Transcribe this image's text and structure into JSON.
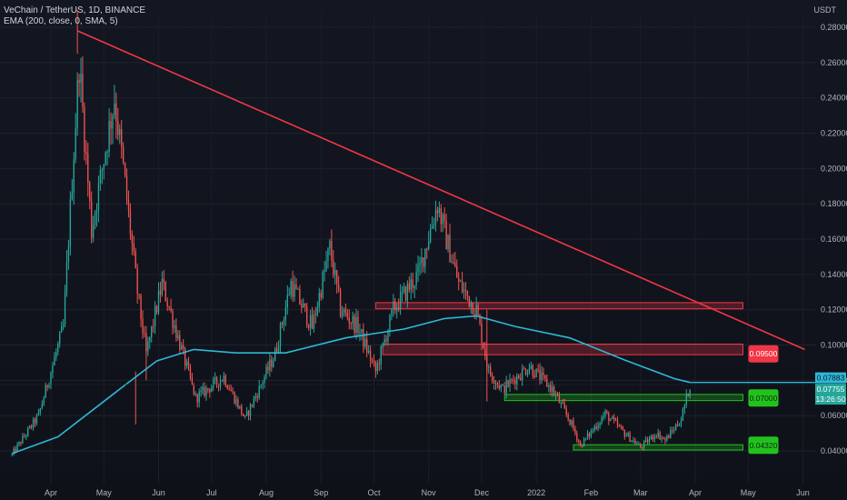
{
  "header": {
    "title": "VeChain / TetherUS, 1D, BINANCE",
    "indicator": "EMA (200, close, 0, SMA, 5)",
    "currency": "USDT"
  },
  "chart_data": {
    "type": "candlestick",
    "x_labels": [
      "Apr",
      "May",
      "Jun",
      "Jul",
      "Aug",
      "Sep",
      "Oct",
      "Nov",
      "Dec",
      "2022",
      "Feb",
      "Mar",
      "Apr",
      "May",
      "Jun"
    ],
    "y_ticks": [
      "0.28000",
      "0.26000",
      "0.24000",
      "0.22000",
      "0.20000",
      "0.18000",
      "0.16000",
      "0.14000",
      "0.12000",
      "0.10000",
      "0.08000",
      "0.06000",
      "0.04000"
    ],
    "ylim": [
      0.034,
      0.286
    ],
    "price_key_points": [
      {
        "date": "2021-03-10",
        "close": 0.038
      },
      {
        "date": "2021-03-25",
        "close": 0.06
      },
      {
        "date": "2021-04-08",
        "close": 0.11
      },
      {
        "date": "2021-04-17",
        "close": 0.26
      },
      {
        "date": "2021-04-24",
        "close": 0.165
      },
      {
        "date": "2021-05-07",
        "close": 0.24
      },
      {
        "date": "2021-05-12",
        "close": 0.2
      },
      {
        "date": "2021-05-20",
        "close": 0.13
      },
      {
        "date": "2021-05-25",
        "close": 0.095
      },
      {
        "date": "2021-06-03",
        "close": 0.135
      },
      {
        "date": "2021-06-22",
        "close": 0.07
      },
      {
        "date": "2021-07-08",
        "close": 0.082
      },
      {
        "date": "2021-07-20",
        "close": 0.058
      },
      {
        "date": "2021-08-06",
        "close": 0.095
      },
      {
        "date": "2021-08-15",
        "close": 0.135
      },
      {
        "date": "2021-08-27",
        "close": 0.11
      },
      {
        "date": "2021-09-06",
        "close": 0.155
      },
      {
        "date": "2021-09-12",
        "close": 0.12
      },
      {
        "date": "2021-09-22",
        "close": 0.11
      },
      {
        "date": "2021-10-02",
        "close": 0.085
      },
      {
        "date": "2021-10-12",
        "close": 0.12
      },
      {
        "date": "2021-10-26",
        "close": 0.14
      },
      {
        "date": "2021-11-06",
        "close": 0.18
      },
      {
        "date": "2021-11-11",
        "close": 0.16
      },
      {
        "date": "2021-11-18",
        "close": 0.135
      },
      {
        "date": "2021-11-28",
        "close": 0.12
      },
      {
        "date": "2021-12-05",
        "close": 0.085
      },
      {
        "date": "2021-12-13",
        "close": 0.075
      },
      {
        "date": "2021-12-28",
        "close": 0.088
      },
      {
        "date": "2022-01-10",
        "close": 0.075
      },
      {
        "date": "2022-01-21",
        "close": 0.055
      },
      {
        "date": "2022-01-26",
        "close": 0.043
      },
      {
        "date": "2022-02-09",
        "close": 0.061
      },
      {
        "date": "2022-02-20",
        "close": 0.05
      },
      {
        "date": "2022-03-01",
        "close": 0.042
      },
      {
        "date": "2022-03-10",
        "close": 0.05
      },
      {
        "date": "2022-03-15",
        "close": 0.046
      },
      {
        "date": "2022-03-24",
        "close": 0.058
      },
      {
        "date": "2022-03-29",
        "close": 0.0775
      }
    ],
    "ema_key_points": [
      {
        "date": "2021-03-10",
        "value": 0.0385
      },
      {
        "date": "2021-04-05",
        "value": 0.048
      },
      {
        "date": "2021-05-10",
        "value": 0.075
      },
      {
        "date": "2021-05-31",
        "value": 0.091
      },
      {
        "date": "2021-06-21",
        "value": 0.0975
      },
      {
        "date": "2021-07-15",
        "value": 0.0955
      },
      {
        "date": "2021-08-12",
        "value": 0.0955
      },
      {
        "date": "2021-09-15",
        "value": 0.104
      },
      {
        "date": "2021-10-18",
        "value": 0.109
      },
      {
        "date": "2021-11-10",
        "value": 0.115
      },
      {
        "date": "2021-11-28",
        "value": 0.1165
      },
      {
        "date": "2021-12-20",
        "value": 0.1105
      },
      {
        "date": "2022-01-20",
        "value": 0.104
      },
      {
        "date": "2022-02-20",
        "value": 0.0915
      },
      {
        "date": "2022-03-20",
        "value": 0.081
      },
      {
        "date": "2022-03-29",
        "value": 0.0788
      }
    ],
    "trendline": {
      "start": {
        "date": "2021-04-16",
        "value": 0.278
      },
      "end": {
        "date": "2022-06-02",
        "value": 0.0975
      }
    },
    "zones": [
      {
        "kind": "resistance",
        "date_from": "2021-10-02",
        "date_to": "2022-04-28",
        "low": 0.1205,
        "high": 0.124
      },
      {
        "kind": "resistance",
        "date_from": "2021-10-06",
        "date_to": "2022-04-28",
        "low": 0.0945,
        "high": 0.1005
      },
      {
        "kind": "support",
        "date_from": "2021-12-14",
        "date_to": "2022-04-28",
        "low": 0.0685,
        "high": 0.072
      },
      {
        "kind": "support",
        "date_from": "2022-01-22",
        "date_to": "2022-04-28",
        "low": 0.0405,
        "high": 0.0435
      }
    ],
    "level_labels": [
      {
        "text": "0.09500",
        "value": 0.095,
        "kind": "resistance"
      },
      {
        "text": "0.07000",
        "value": 0.07,
        "kind": "support"
      },
      {
        "text": "0.04320",
        "value": 0.0432,
        "kind": "support"
      }
    ],
    "axis_markers": [
      {
        "text": "0.07883",
        "value": 0.07883,
        "kind": "ema"
      },
      {
        "text": "0.07755",
        "value": 0.07755,
        "kind": "price"
      },
      {
        "text": "13:26:50",
        "value": 0.07755,
        "kind": "countdown"
      }
    ],
    "colors": {
      "background": "#131722",
      "up": "#26a69a",
      "down": "#ef5350",
      "ema": "#2eb8d8",
      "trendline": "#f23645",
      "resistance_zone": "#f23645",
      "support_zone": "#22c21e"
    }
  }
}
